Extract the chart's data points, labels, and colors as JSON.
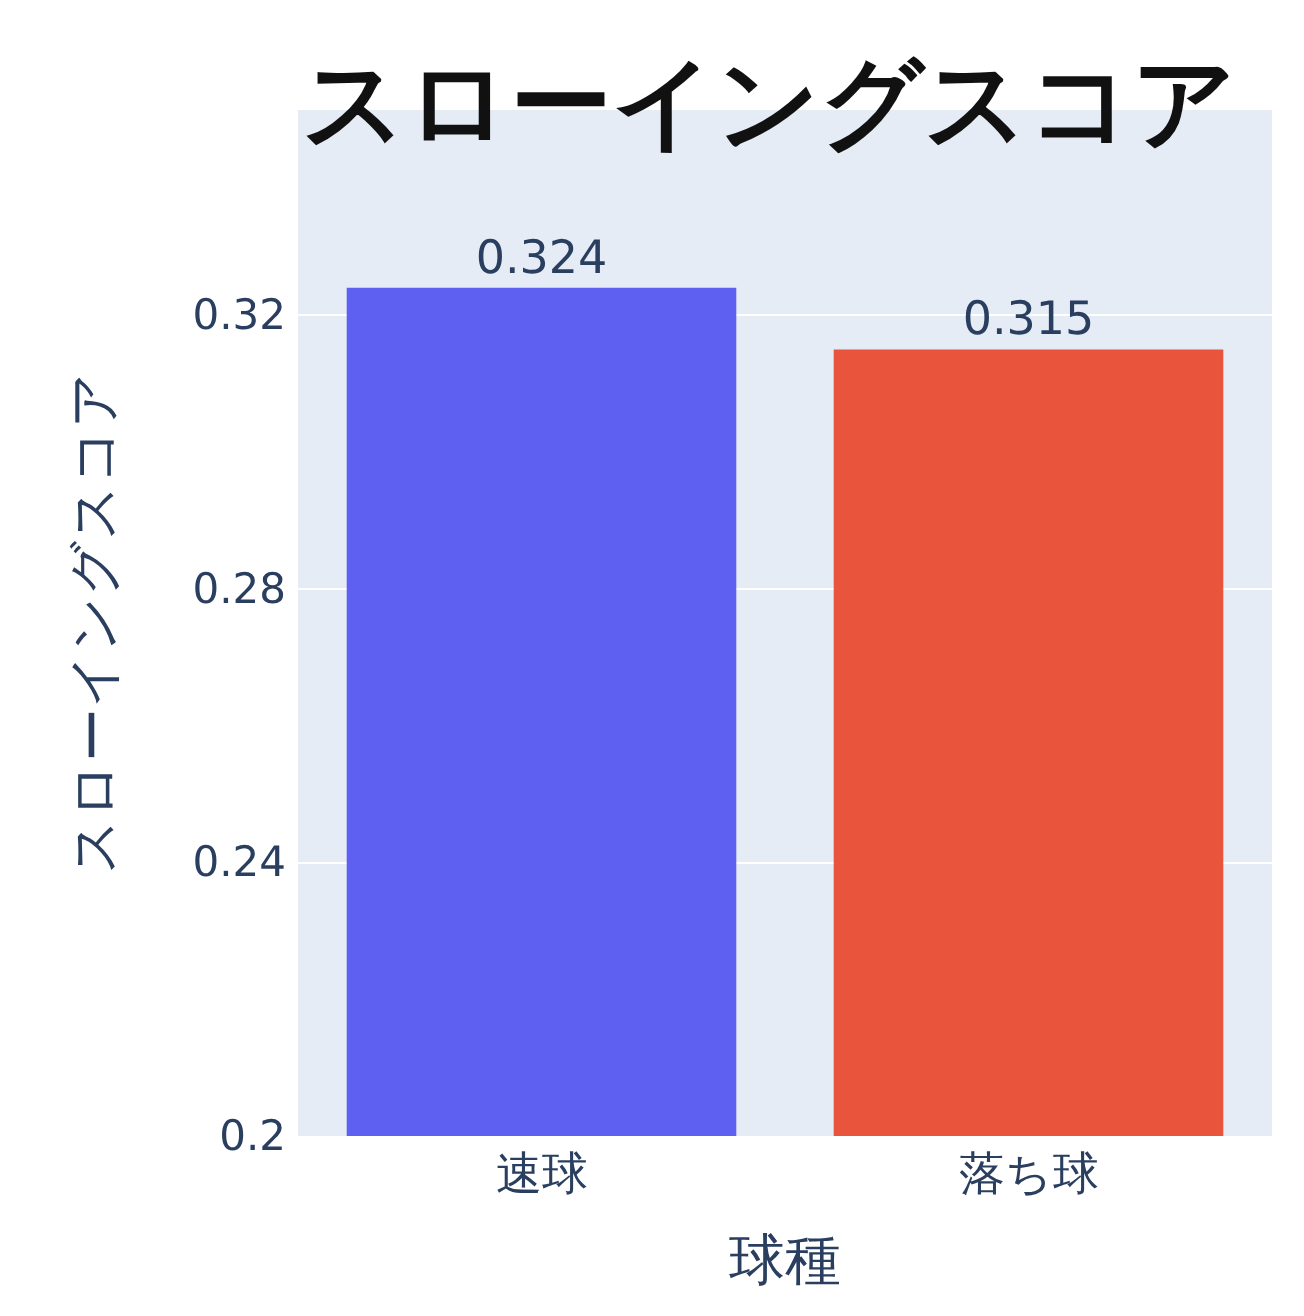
{
  "chart_data": {
    "type": "bar",
    "title": "スローイングスコア",
    "xlabel": "球種",
    "ylabel": "スローイングスコア",
    "categories": [
      "速球",
      "落ち球"
    ],
    "values": [
      0.324,
      0.315
    ],
    "colors": [
      "#5e60f2",
      "#e8543c"
    ],
    "ylim": [
      0.2,
      0.35
    ],
    "yticks": [
      0.2,
      0.24,
      0.28,
      0.32
    ],
    "grid": "y",
    "data_labels": true
  }
}
